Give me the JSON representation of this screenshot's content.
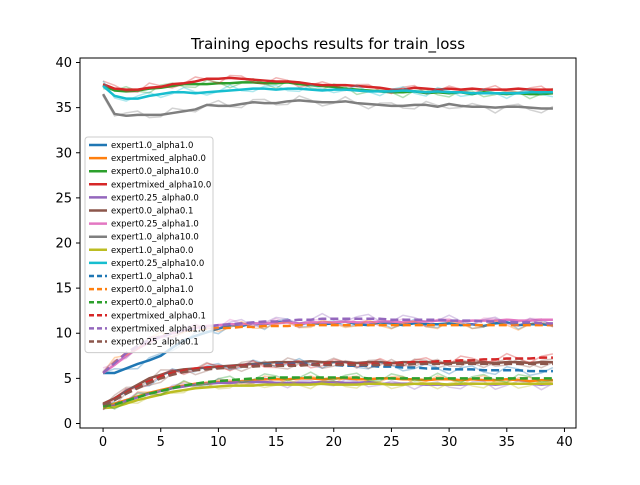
{
  "chart_data": {
    "type": "line",
    "title": "Training epochs results for train_loss",
    "xlabel": "",
    "ylabel": "",
    "xlim": [
      -2,
      41
    ],
    "ylim": [
      -0.5,
      40.5
    ],
    "x_ticks": [
      0,
      5,
      10,
      15,
      20,
      25,
      30,
      35,
      40
    ],
    "y_ticks": [
      0,
      5,
      10,
      15,
      20,
      25,
      30,
      35,
      40
    ],
    "grid": false,
    "legend_position": "center-left",
    "x": [
      0,
      1,
      2,
      3,
      4,
      5,
      6,
      7,
      8,
      9,
      10,
      11,
      12,
      13,
      14,
      15,
      16,
      17,
      18,
      19,
      20,
      21,
      22,
      23,
      24,
      25,
      26,
      27,
      28,
      29,
      30,
      31,
      32,
      33,
      34,
      35,
      36,
      37,
      38,
      39
    ],
    "series": [
      {
        "name": "expert1.0_alpha1.0",
        "color": "#1f77b4",
        "dash": "solid",
        "values": [
          5.6,
          5.6,
          6.1,
          6.6,
          7.0,
          7.5,
          8.4,
          9.2,
          9.7,
          10.1,
          10.5,
          10.9,
          10.8,
          11.1,
          11.0,
          11.2,
          11.3,
          11.0,
          11.2,
          11.0,
          11.1,
          11.3,
          11.0,
          10.9,
          11.2,
          11.1,
          10.9,
          11.1,
          11.0,
          11.0,
          11.1,
          10.9,
          11.0,
          10.8,
          11.1,
          11.2,
          10.9,
          11.0,
          11.0,
          10.9
        ]
      },
      {
        "name": "expertmixed_alpha0.0",
        "color": "#ff7f0e",
        "dash": "solid",
        "values": [
          2.0,
          2.2,
          2.6,
          3.0,
          3.4,
          3.7,
          4.0,
          4.2,
          4.4,
          4.5,
          4.6,
          4.6,
          4.7,
          4.8,
          4.9,
          4.9,
          4.9,
          5.0,
          5.0,
          4.9,
          5.0,
          5.0,
          4.9,
          4.9,
          5.0,
          5.0,
          4.9,
          4.9,
          4.8,
          4.9,
          4.9,
          4.8,
          4.9,
          4.8,
          4.8,
          4.9,
          4.8,
          4.7,
          4.8,
          4.8
        ]
      },
      {
        "name": "expert0.0_alpha10.0",
        "color": "#2ca02c",
        "dash": "solid",
        "values": [
          37.5,
          36.9,
          36.8,
          36.9,
          37.1,
          37.2,
          37.4,
          37.6,
          37.6,
          37.6,
          37.7,
          37.7,
          37.8,
          37.8,
          37.7,
          37.7,
          37.8,
          37.6,
          37.5,
          37.4,
          37.3,
          37.1,
          37.0,
          36.9,
          36.8,
          36.7,
          36.7,
          36.8,
          36.6,
          36.7,
          36.6,
          36.7,
          36.5,
          36.7,
          36.6,
          36.5,
          36.6,
          36.5,
          36.5,
          36.6
        ]
      },
      {
        "name": "expertmixed_alpha10.0",
        "color": "#d62728",
        "dash": "solid",
        "values": [
          37.6,
          37.1,
          37.0,
          37.0,
          37.2,
          37.3,
          37.6,
          37.7,
          37.9,
          38.2,
          38.2,
          38.3,
          38.2,
          38.1,
          38.0,
          37.9,
          37.9,
          37.8,
          37.6,
          37.5,
          37.5,
          37.5,
          37.4,
          37.3,
          37.2,
          37.0,
          37.0,
          37.2,
          37.1,
          37.0,
          37.1,
          37.0,
          37.1,
          37.0,
          37.0,
          37.0,
          37.1,
          37.0,
          37.0,
          37.0
        ]
      },
      {
        "name": "expert0.25_alpha0.0",
        "color": "#9467bd",
        "dash": "solid",
        "values": [
          1.8,
          2.0,
          2.5,
          2.9,
          3.3,
          3.6,
          3.9,
          4.1,
          4.3,
          4.4,
          4.5,
          4.5,
          4.6,
          4.6,
          4.6,
          4.5,
          4.5,
          4.5,
          4.5,
          4.6,
          4.6,
          4.5,
          4.5,
          4.6,
          4.4,
          4.4,
          4.4,
          4.4,
          4.3,
          4.3,
          4.3,
          4.3,
          4.4,
          4.4,
          4.3,
          4.4,
          4.4,
          4.4,
          4.3,
          4.4
        ]
      },
      {
        "name": "expert0.0_alpha0.1",
        "color": "#8c564b",
        "dash": "solid",
        "values": [
          2.2,
          2.8,
          3.6,
          4.3,
          5.0,
          5.4,
          5.8,
          6.0,
          6.1,
          6.2,
          6.3,
          6.4,
          6.5,
          6.6,
          6.7,
          6.8,
          6.8,
          6.8,
          6.9,
          6.8,
          6.8,
          6.8,
          6.7,
          6.8,
          6.8,
          6.7,
          6.8,
          6.8,
          6.8,
          6.7,
          6.7,
          6.8,
          6.7,
          6.8,
          6.7,
          6.8,
          6.8,
          6.7,
          6.8,
          6.8
        ]
      },
      {
        "name": "expert0.25_alpha1.0",
        "color": "#e377c2",
        "dash": "solid",
        "values": [
          5.6,
          6.5,
          7.5,
          8.3,
          9.0,
          9.6,
          10.0,
          10.3,
          10.6,
          10.8,
          10.9,
          11.0,
          11.0,
          11.1,
          11.1,
          11.1,
          11.2,
          11.1,
          11.2,
          11.2,
          11.2,
          11.3,
          11.2,
          11.2,
          11.3,
          11.3,
          11.2,
          11.3,
          11.3,
          11.4,
          11.4,
          11.3,
          11.4,
          11.4,
          11.4,
          11.5,
          11.4,
          11.4,
          11.5,
          11.5
        ]
      },
      {
        "name": "expert1.0_alpha10.0",
        "color": "#7f7f7f",
        "dash": "solid",
        "values": [
          36.5,
          34.3,
          34.1,
          34.2,
          34.2,
          34.2,
          34.4,
          34.6,
          34.8,
          35.3,
          35.2,
          35.2,
          35.4,
          35.6,
          35.5,
          35.5,
          35.7,
          35.8,
          35.7,
          35.6,
          35.6,
          35.7,
          35.5,
          35.4,
          35.3,
          35.2,
          35.2,
          35.3,
          35.3,
          35.1,
          35.4,
          35.2,
          35.1,
          35.1,
          35.0,
          35.1,
          35.1,
          35.0,
          34.9,
          34.9
        ]
      },
      {
        "name": "expert1.0_alpha0.0",
        "color": "#bcbd22",
        "dash": "solid",
        "values": [
          1.7,
          1.8,
          2.2,
          2.6,
          2.9,
          3.2,
          3.5,
          3.7,
          3.9,
          4.0,
          4.1,
          4.2,
          4.2,
          4.2,
          4.3,
          4.3,
          4.3,
          4.3,
          4.3,
          4.4,
          4.3,
          4.3,
          4.3,
          4.4,
          4.4,
          4.3,
          4.3,
          4.4,
          4.4,
          4.4,
          4.3,
          4.4,
          4.4,
          4.4,
          4.4,
          4.4,
          4.4,
          4.4,
          4.4,
          4.4
        ]
      },
      {
        "name": "expert0.25_alpha10.0",
        "color": "#17becf",
        "dash": "solid",
        "values": [
          37.4,
          36.3,
          36.0,
          36.0,
          36.3,
          36.5,
          36.7,
          36.7,
          36.6,
          36.7,
          36.8,
          36.9,
          37.0,
          37.1,
          37.1,
          37.0,
          37.1,
          37.1,
          37.0,
          36.9,
          37.0,
          37.0,
          36.9,
          36.8,
          36.8,
          36.8,
          36.9,
          36.8,
          36.7,
          36.8,
          36.7,
          36.7,
          36.6,
          36.6,
          36.6,
          36.6,
          36.6,
          36.7,
          36.7,
          36.7
        ]
      },
      {
        "name": "expert1.0_alpha0.1",
        "color": "#1f77b4",
        "dash": "dashed",
        "values": [
          2.0,
          2.6,
          3.3,
          4.0,
          4.6,
          5.1,
          5.5,
          5.8,
          6.0,
          6.1,
          6.2,
          6.3,
          6.4,
          6.5,
          6.5,
          6.6,
          6.6,
          6.6,
          6.6,
          6.5,
          6.5,
          6.4,
          6.4,
          6.4,
          6.3,
          6.3,
          6.2,
          6.2,
          6.1,
          6.1,
          6.0,
          6.0,
          6.0,
          5.9,
          5.9,
          5.9,
          5.9,
          5.8,
          5.8,
          5.8
        ]
      },
      {
        "name": "expert0.0_alpha1.0",
        "color": "#ff7f0e",
        "dash": "dashed",
        "values": [
          5.6,
          6.8,
          7.8,
          8.6,
          9.2,
          9.7,
          10.0,
          10.2,
          10.4,
          10.5,
          10.6,
          10.6,
          10.7,
          10.7,
          10.8,
          10.8,
          10.8,
          10.9,
          10.9,
          10.9,
          10.9,
          10.9,
          10.9,
          10.9,
          10.9,
          10.9,
          10.9,
          10.9,
          10.9,
          10.9,
          10.9,
          10.9,
          10.9,
          10.9,
          10.9,
          10.9,
          10.9,
          10.9,
          10.9,
          10.9
        ]
      },
      {
        "name": "expert0.0_alpha0.0",
        "color": "#2ca02c",
        "dash": "dashed",
        "values": [
          1.9,
          2.1,
          2.5,
          2.9,
          3.3,
          3.6,
          3.9,
          4.2,
          4.4,
          4.6,
          4.7,
          4.8,
          4.9,
          5.0,
          5.0,
          5.1,
          5.1,
          5.1,
          5.1,
          5.1,
          5.1,
          5.1,
          5.1,
          5.0,
          5.0,
          5.0,
          5.0,
          5.0,
          5.0,
          5.0,
          5.0,
          5.0,
          5.0,
          5.0,
          5.0,
          5.0,
          5.0,
          5.0,
          5.0,
          5.0
        ]
      },
      {
        "name": "expertmixed_alpha0.1",
        "color": "#d62728",
        "dash": "dashed",
        "values": [
          2.1,
          2.7,
          3.4,
          4.1,
          4.7,
          5.2,
          5.6,
          5.9,
          6.1,
          6.2,
          6.3,
          6.3,
          6.4,
          6.4,
          6.4,
          6.5,
          6.5,
          6.5,
          6.5,
          6.6,
          6.6,
          6.6,
          6.6,
          6.6,
          6.6,
          6.7,
          6.7,
          6.8,
          6.8,
          6.9,
          6.9,
          7.0,
          7.0,
          7.1,
          7.1,
          7.2,
          7.2,
          7.2,
          7.3,
          7.3
        ]
      },
      {
        "name": "expertmixed_alpha1.0",
        "color": "#9467bd",
        "dash": "dashed",
        "values": [
          5.6,
          6.7,
          7.8,
          8.6,
          9.2,
          9.6,
          10.0,
          10.3,
          10.5,
          10.7,
          10.9,
          11.0,
          11.1,
          11.2,
          11.3,
          11.3,
          11.4,
          11.5,
          11.5,
          11.6,
          11.6,
          11.6,
          11.6,
          11.6,
          11.6,
          11.5,
          11.5,
          11.5,
          11.5,
          11.5,
          11.4,
          11.4,
          11.4,
          11.3,
          11.3,
          11.3,
          11.2,
          11.2,
          11.1,
          11.1
        ]
      },
      {
        "name": "expert0.25_alpha0.1",
        "color": "#8c564b",
        "dash": "dashed",
        "values": [
          2.1,
          2.6,
          3.3,
          3.9,
          4.5,
          5.0,
          5.4,
          5.7,
          5.9,
          6.0,
          6.1,
          6.2,
          6.3,
          6.3,
          6.4,
          6.4,
          6.4,
          6.4,
          6.5,
          6.5,
          6.5,
          6.5,
          6.5,
          6.5,
          6.5,
          6.5,
          6.5,
          6.6,
          6.6,
          6.6,
          6.6,
          6.6,
          6.6,
          6.6,
          6.6,
          6.6,
          6.6,
          6.6,
          6.6,
          6.6
        ]
      }
    ]
  }
}
